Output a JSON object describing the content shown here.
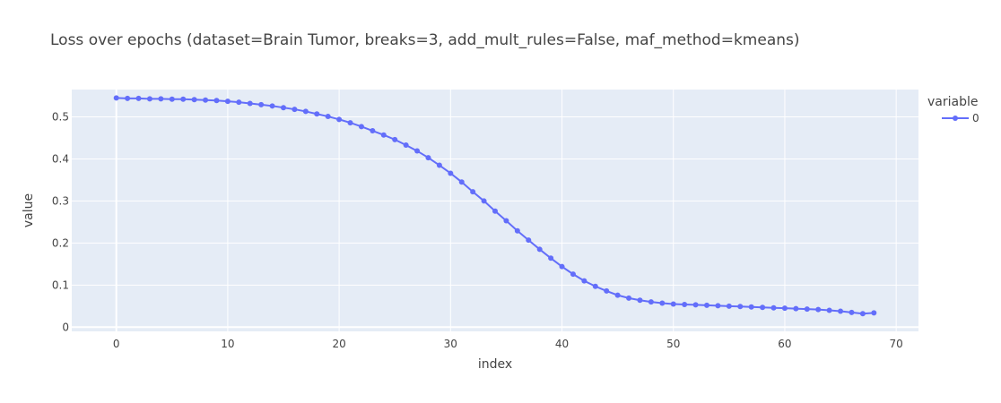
{
  "chart_data": {
    "type": "line",
    "title": "Loss over epochs (dataset=Brain Tumor, breaks=3, add_mult_rules=False, maf_method=kmeans)",
    "xlabel": "index",
    "ylabel": "value",
    "xlim": [
      -4,
      72
    ],
    "ylim": [
      -0.01,
      0.565
    ],
    "xticks": [
      0,
      10,
      20,
      30,
      40,
      50,
      60,
      70
    ],
    "xtick_labels": [
      "0",
      "10",
      "20",
      "30",
      "40",
      "50",
      "60",
      "70"
    ],
    "yticks": [
      0,
      0.1,
      0.2,
      0.3,
      0.4,
      0.5
    ],
    "ytick_labels": [
      "0",
      "0.1",
      "0.2",
      "0.3",
      "0.4",
      "0.5"
    ],
    "grid": true,
    "legend": {
      "title": "variable",
      "placement": "top-right"
    },
    "colors": {
      "series": "#636efa",
      "plot_bg": "#e5ecf6",
      "grid": "#ffffff"
    },
    "series": [
      {
        "name": "0",
        "x": [
          0,
          1,
          2,
          3,
          4,
          5,
          6,
          7,
          8,
          9,
          10,
          11,
          12,
          13,
          14,
          15,
          16,
          17,
          18,
          19,
          20,
          21,
          22,
          23,
          24,
          25,
          26,
          27,
          28,
          29,
          30,
          31,
          32,
          33,
          34,
          35,
          36,
          37,
          38,
          39,
          40,
          41,
          42,
          43,
          44,
          45,
          46,
          47,
          48,
          49,
          50,
          51,
          52,
          53,
          54,
          55,
          56,
          57,
          58,
          59,
          60,
          61,
          62,
          63,
          64,
          65,
          66,
          67,
          68
        ],
        "values": [
          0.545,
          0.544,
          0.544,
          0.543,
          0.543,
          0.542,
          0.542,
          0.541,
          0.54,
          0.539,
          0.537,
          0.535,
          0.532,
          0.529,
          0.526,
          0.522,
          0.518,
          0.513,
          0.507,
          0.501,
          0.494,
          0.486,
          0.477,
          0.467,
          0.457,
          0.446,
          0.433,
          0.419,
          0.403,
          0.385,
          0.366,
          0.345,
          0.322,
          0.3,
          0.276,
          0.253,
          0.229,
          0.207,
          0.185,
          0.164,
          0.144,
          0.126,
          0.11,
          0.097,
          0.086,
          0.076,
          0.069,
          0.064,
          0.06,
          0.057,
          0.055,
          0.054,
          0.053,
          0.052,
          0.051,
          0.05,
          0.049,
          0.048,
          0.047,
          0.046,
          0.045,
          0.044,
          0.043,
          0.042,
          0.04,
          0.038,
          0.035,
          0.032,
          0.034
        ]
      }
    ]
  }
}
